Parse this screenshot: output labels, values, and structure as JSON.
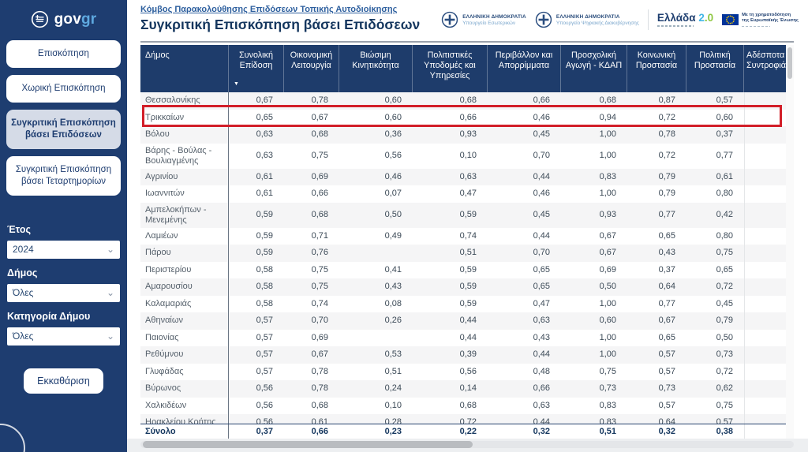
{
  "colors": {
    "sidebar_navy": "#1e3d70",
    "table_header_navy": "#1e3c6b",
    "highlight_red": "#d21e28",
    "link_blue": "#2d5f9e",
    "brand_cyan": "#41b6e6",
    "brand_green": "#8dc63f",
    "eu_flag_blue": "#003399"
  },
  "sidebar": {
    "logo": {
      "gov": "gov",
      "gr": "gr"
    },
    "nav": [
      {
        "label": "Επισκόπηση",
        "active": false
      },
      {
        "label": "Χωρική Επισκόπηση",
        "active": false
      },
      {
        "label": "Συγκριτική Επισκόπηση βάσει Επιδόσεων",
        "active": true
      },
      {
        "label": "Συγκριτική Επισκόπηση βάσει Τεταρτημορίων",
        "active": false
      }
    ],
    "filters": [
      {
        "label": "Έτος",
        "value": "2024"
      },
      {
        "label": "Δήμος",
        "value": "Όλες"
      },
      {
        "label": "Κατηγορία Δήμου",
        "value": "Όλες"
      }
    ],
    "clear_button": "Εκκαθάριση"
  },
  "header": {
    "breadcrumb": "Κόμβος Παρακολούθησης Επιδόσεων Τοπικής Αυτοδιοίκησης",
    "title": "Συγκριτική Επισκόπηση βάσει Επιδόσεων",
    "ministry1": {
      "line1": "ΕΛΛΗΝΙΚΗ ΔΗΜΟΚΡΑΤΙΑ",
      "line2": "Υπουργείο Εσωτερικών"
    },
    "ministry2": {
      "line1": "ΕΛΛΗΝΙΚΗ ΔΗΜΟΚΡΑΤΙΑ",
      "line2": "Υπουργείο Ψηφιακής Διακυβέρνησης"
    },
    "brand": {
      "name": "Ελλάδα",
      "version_cyan": "2",
      "version_green": ".0"
    },
    "eu": {
      "line1": "Με τη χρηματοδότηση",
      "line2": "της Ευρωπαϊκής Ένωσης"
    }
  },
  "table": {
    "columns": [
      "Δήμος",
      "Συνολική Επίδοση",
      "Οικονομική Λειτουργία",
      "Βιώσιμη Κινητικότητα",
      "Πολιτιστικές Υποδομές και Υπηρεσίες",
      "Περιβάλλον και Απορρίμματα",
      "Προσχολική Αγωγή - ΚΔΑΠ",
      "Κοινωνική Προστασία",
      "Πολιτική Προστασία",
      "Αδέσποτα Συντροφιάς"
    ],
    "sort_column": "Συνολική Επίδοση",
    "sort_direction": "desc",
    "highlighted_row": "Τρικκαίων",
    "rows": [
      {
        "name": "Θεσσαλονίκης",
        "values": [
          "0,67",
          "0,78",
          "0,60",
          "0,68",
          "0,66",
          "0,68",
          "0,87",
          "0,57",
          ""
        ]
      },
      {
        "name": "Τρικκαίων",
        "values": [
          "0,65",
          "0,67",
          "0,60",
          "0,66",
          "0,46",
          "0,94",
          "0,72",
          "0,60",
          ""
        ]
      },
      {
        "name": "Βόλου",
        "values": [
          "0,63",
          "0,68",
          "0,36",
          "0,93",
          "0,45",
          "1,00",
          "0,78",
          "0,37",
          ""
        ]
      },
      {
        "name": "Βάρης - Βούλας - Βουλιαγμένης",
        "values": [
          "0,63",
          "0,75",
          "0,56",
          "0,10",
          "0,70",
          "1,00",
          "0,72",
          "0,77",
          ""
        ]
      },
      {
        "name": "Αγρινίου",
        "values": [
          "0,61",
          "0,69",
          "0,46",
          "0,63",
          "0,44",
          "0,83",
          "0,79",
          "0,61",
          ""
        ]
      },
      {
        "name": "Ιωαννιτών",
        "values": [
          "0,61",
          "0,66",
          "0,07",
          "0,47",
          "0,46",
          "1,00",
          "0,79",
          "0,80",
          ""
        ]
      },
      {
        "name": "Αμπελοκήπων - Μενεμένης",
        "values": [
          "0,59",
          "0,68",
          "0,50",
          "0,59",
          "0,45",
          "0,93",
          "0,77",
          "0,42",
          ""
        ]
      },
      {
        "name": "Λαμιέων",
        "values": [
          "0,59",
          "0,71",
          "0,49",
          "0,74",
          "0,44",
          "0,67",
          "0,65",
          "0,80",
          ""
        ]
      },
      {
        "name": "Πάρου",
        "values": [
          "0,59",
          "0,76",
          "",
          "0,51",
          "0,70",
          "0,67",
          "0,43",
          "0,75",
          ""
        ]
      },
      {
        "name": "Περιστερίου",
        "values": [
          "0,58",
          "0,75",
          "0,41",
          "0,59",
          "0,65",
          "0,69",
          "0,37",
          "0,65",
          ""
        ]
      },
      {
        "name": "Αμαρουσίου",
        "values": [
          "0,58",
          "0,75",
          "0,43",
          "0,59",
          "0,65",
          "0,50",
          "0,64",
          "0,72",
          ""
        ]
      },
      {
        "name": "Καλαμαριάς",
        "values": [
          "0,58",
          "0,74",
          "0,08",
          "0,59",
          "0,47",
          "1,00",
          "0,77",
          "0,45",
          ""
        ]
      },
      {
        "name": "Αθηναίων",
        "values": [
          "0,57",
          "0,70",
          "0,26",
          "0,44",
          "0,63",
          "0,60",
          "0,67",
          "0,79",
          ""
        ]
      },
      {
        "name": "Παιονίας",
        "values": [
          "0,57",
          "0,69",
          "",
          "0,44",
          "0,43",
          "1,00",
          "0,65",
          "0,50",
          ""
        ]
      },
      {
        "name": "Ρεθύμνου",
        "values": [
          "0,57",
          "0,67",
          "0,53",
          "0,39",
          "0,44",
          "1,00",
          "0,57",
          "0,73",
          ""
        ]
      },
      {
        "name": "Γλυφάδας",
        "values": [
          "0,57",
          "0,78",
          "0,51",
          "0,56",
          "0,48",
          "0,75",
          "0,57",
          "0,72",
          ""
        ]
      },
      {
        "name": "Βύρωνος",
        "values": [
          "0,56",
          "0,78",
          "0,24",
          "0,14",
          "0,66",
          "0,73",
          "0,73",
          "0,62",
          ""
        ]
      },
      {
        "name": "Χαλκιδέων",
        "values": [
          "0,56",
          "0,68",
          "0,10",
          "0,68",
          "0,63",
          "0,83",
          "0,57",
          "0,75",
          ""
        ]
      },
      {
        "name": "Ηρακλείου Κρήτης",
        "values": [
          "0,56",
          "0,61",
          "0,28",
          "0,72",
          "0,44",
          "0,83",
          "0,64",
          "0,57",
          ""
        ]
      }
    ],
    "total": {
      "label": "Σύνολο",
      "values": [
        "0,37",
        "0,66",
        "0,23",
        "0,22",
        "0,32",
        "0,51",
        "0,32",
        "0,38",
        ""
      ]
    }
  }
}
